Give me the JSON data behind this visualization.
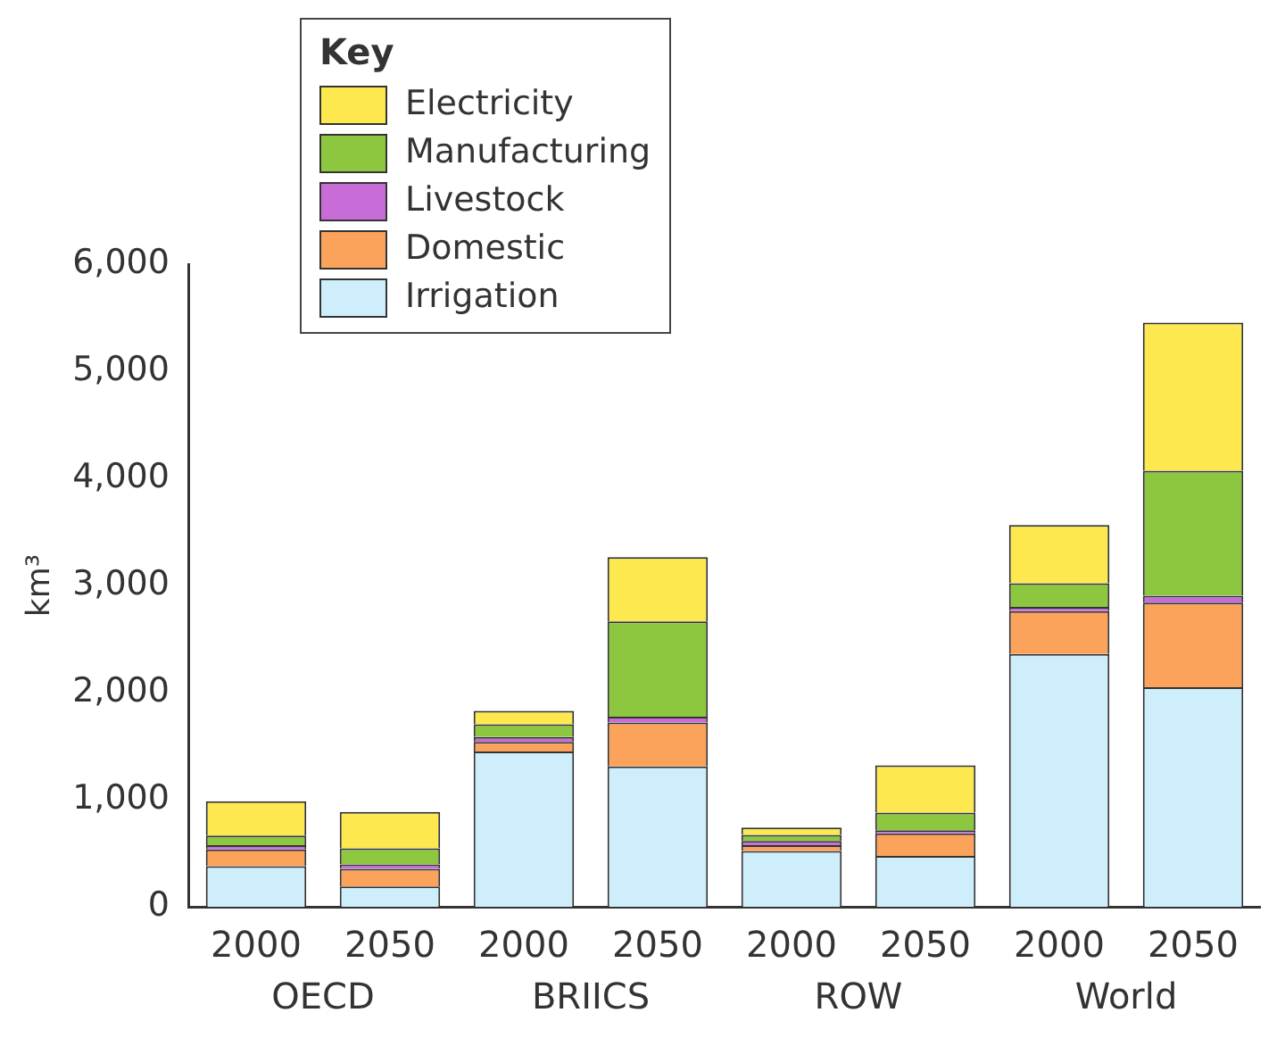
{
  "chart_data": {
    "type": "bar",
    "stacked": true,
    "ylabel": "km³",
    "legend_title": "Key",
    "legend": "top left",
    "grid": false,
    "categories": [
      "2000",
      "2050",
      "2000",
      "2050",
      "2000",
      "2050",
      "2000",
      "2050"
    ],
    "annotations": [
      "OECD",
      "BRIICS",
      "ROW",
      "World"
    ],
    "ylim": [
      0,
      6000
    ],
    "yticks": [
      {
        "value": 0,
        "label": "0"
      },
      {
        "value": 1000,
        "label": "1,000"
      },
      {
        "value": 2000,
        "label": "2,000"
      },
      {
        "value": 3000,
        "label": "3,000"
      },
      {
        "value": 4000,
        "label": "4,000"
      },
      {
        "value": 5000,
        "label": "5,000"
      },
      {
        "value": 6000,
        "label": "6,000"
      }
    ],
    "series": [
      {
        "name": "Irrigation",
        "color": "#cdeefa",
        "values": [
          380,
          190,
          1450,
          1310,
          520,
          475,
          2360,
          2050
        ]
      },
      {
        "name": "Domestic",
        "color": "#fba35a",
        "values": [
          155,
          165,
          90,
          410,
          55,
          210,
          400,
          790
        ]
      },
      {
        "name": "Livestock",
        "color": "#c86dd7",
        "values": [
          40,
          40,
          45,
          55,
          40,
          30,
          40,
          65
        ]
      },
      {
        "name": "Manufacturing",
        "color": "#8dc63f",
        "values": [
          90,
          150,
          120,
          890,
          55,
          165,
          220,
          1165
        ]
      },
      {
        "name": "Electricity",
        "color": "#fde94f",
        "values": [
          320,
          340,
          125,
          600,
          70,
          440,
          545,
          1385
        ]
      }
    ]
  }
}
